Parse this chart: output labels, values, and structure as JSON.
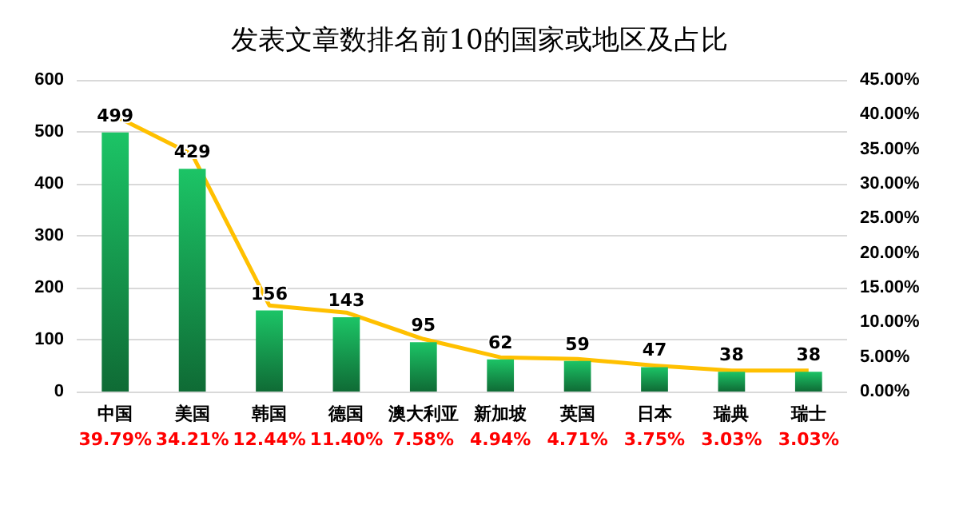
{
  "chart_data": {
    "type": "bar",
    "title": "发表文章数排名前10的国家或地区及占比",
    "categories": [
      "中国",
      "美国",
      "韩国",
      "德国",
      "澳大利亚",
      "新加坡",
      "英国",
      "日本",
      "瑞典",
      "瑞士"
    ],
    "series": [
      {
        "color": "#1cc466",
        "values": [
          499,
          429,
          156,
          143,
          95,
          62,
          59,
          47,
          38,
          38
        ],
        "data_labels": true
      },
      {
        "type": "line",
        "axis": "y2",
        "color": "#ffc000",
        "values": [
          39.79,
          34.21,
          12.44,
          11.4,
          7.58,
          4.94,
          4.71,
          3.75,
          3.03,
          3.03
        ],
        "value_labels": [
          "39.79%",
          "34.21%",
          "12.44%",
          "11.40%",
          "7.58%",
          "4.94%",
          "4.71%",
          "3.75%",
          "3.03%",
          "3.03%"
        ]
      }
    ],
    "ylim": [
      0,
      600
    ],
    "yticks": [
      0,
      100,
      200,
      300,
      400,
      500,
      600
    ],
    "y2lim": [
      0,
      45
    ],
    "y2ticks": [
      {
        "value": 0,
        "label": "0.00%"
      },
      {
        "value": 5,
        "label": "5.00%"
      },
      {
        "value": 10,
        "label": "10.00%"
      },
      {
        "value": 15,
        "label": "15.00%"
      },
      {
        "value": 20,
        "label": "20.00%"
      },
      {
        "value": 25,
        "label": "25.00%"
      },
      {
        "value": 30,
        "label": "30.00%"
      },
      {
        "value": 35,
        "label": "35.00%"
      },
      {
        "value": 40,
        "label": "40.00%"
      },
      {
        "value": 45,
        "label": "45.00%"
      }
    ],
    "grid": "y",
    "marker": "none",
    "line_style": "solid"
  }
}
